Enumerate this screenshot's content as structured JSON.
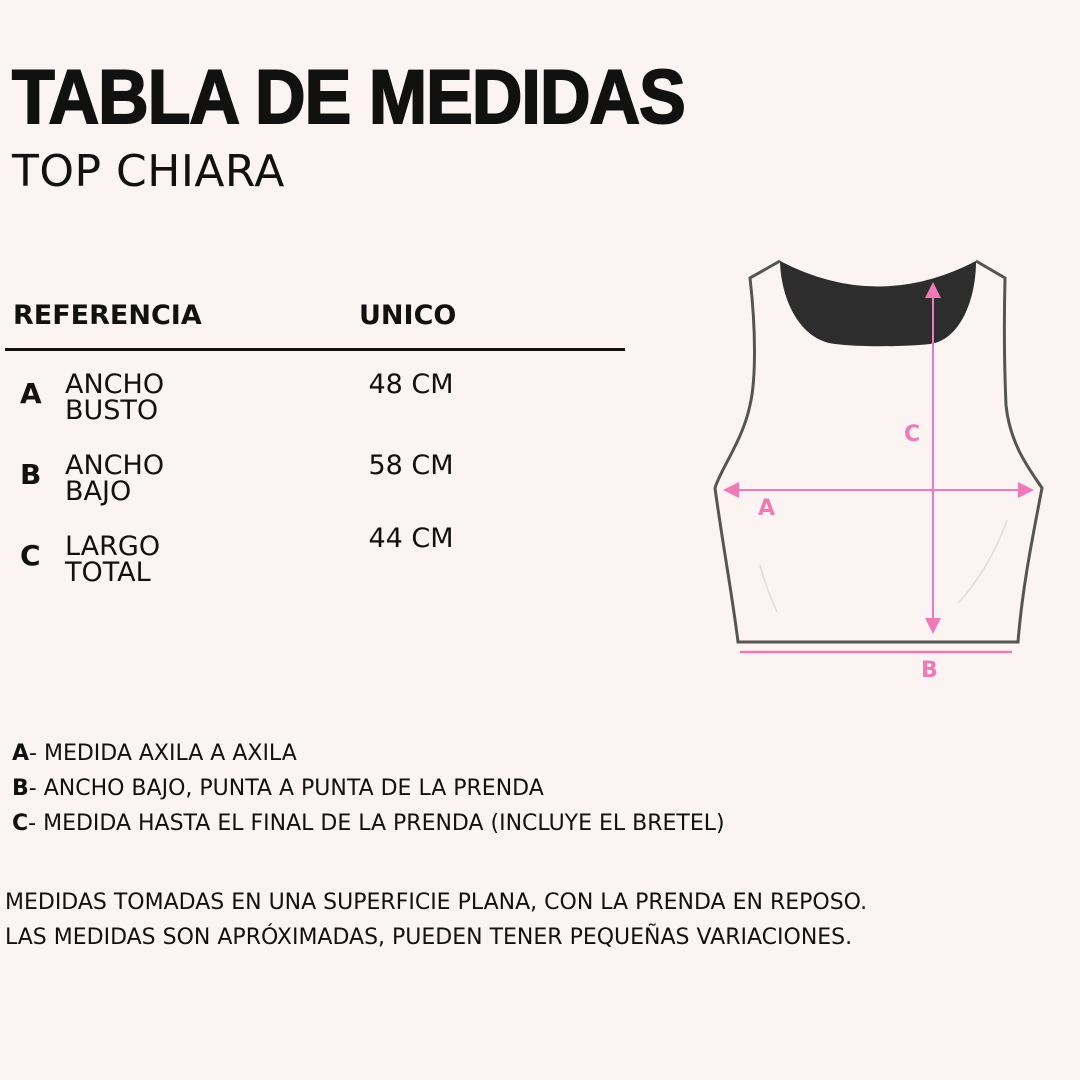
{
  "header": {
    "title": "TABLA DE MEDIDAS",
    "subtitle": "TOP CHIARA"
  },
  "table": {
    "columns": [
      "REFERENCIA",
      "UNICO"
    ],
    "rows": [
      {
        "letter": "A",
        "label_line1": "ANCHO",
        "label_line2": "BUSTO",
        "value": "48 CM"
      },
      {
        "letter": "B",
        "label_line1": "ANCHO",
        "label_line2": "BAJO",
        "value": "58 CM"
      },
      {
        "letter": "C",
        "label_line1": "LARGO",
        "label_line2": "TOTAL",
        "value": "44 CM"
      }
    ]
  },
  "diagram": {
    "labels": {
      "a": "A",
      "b": "B",
      "c": "C"
    },
    "accent_color": "#f07ab8",
    "neck_color": "#2d2d2d",
    "outline_color": "#555555"
  },
  "notes": [
    {
      "letter": "A",
      "text": "- MEDIDA AXILA A AXILA"
    },
    {
      "letter": "B",
      "text": "- ANCHO BAJO, PUNTA A PUNTA DE LA PRENDA"
    },
    {
      "letter": "C",
      "text": "- MEDIDA HASTA EL FINAL DE LA PRENDA (INCLUYE EL BRETEL)"
    }
  ],
  "footer": {
    "line1": "MEDIDAS TOMADAS EN UNA SUPERFICIE PLANA, CON LA PRENDA EN REPOSO.",
    "line2": "LAS MEDIDAS SON APRÓXIMADAS, PUEDEN TENER PEQUEÑAS VARIACIONES."
  }
}
